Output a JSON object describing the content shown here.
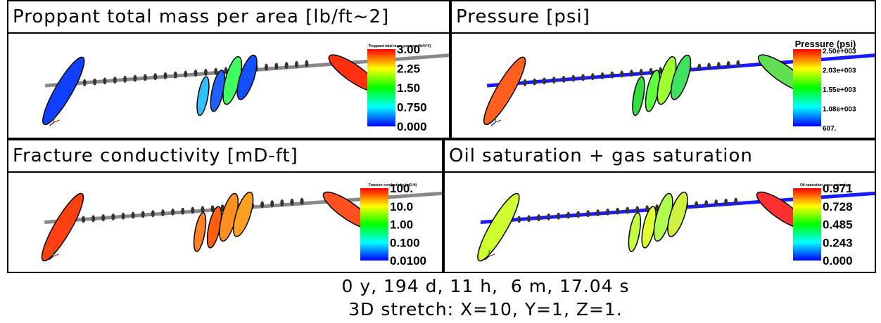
{
  "panels": [
    {
      "title": "Proppant total mass per area [lb/ft~2]",
      "legend_title": "Proppant total mass per area (lb/ft^2)",
      "legend_labels": [
        "3.00",
        "2.25",
        "1.50",
        "0.750",
        "0.000"
      ]
    },
    {
      "title": "Pressure [psi]",
      "legend_title": "Pressure (psi)",
      "legend_labels": [
        "2.50e+003",
        "2.03e+003",
        "1.55e+003",
        "1.08e+003",
        "607."
      ]
    },
    {
      "title": "Fracture conductivity [mD-ft]",
      "legend_title": "Fracture conductivity (mD-ft)",
      "legend_labels": [
        "100.",
        "10.0",
        "1.00",
        "0.100",
        "0.0100"
      ]
    },
    {
      "title": "Oil saturation + gas saturation",
      "legend_title": "Oil saturation + gas saturation",
      "legend_labels": [
        "0.971",
        "0.728",
        "0.485",
        "0.243",
        "0.000"
      ]
    }
  ],
  "footer": {
    "time": "0 y, 194 d, 11 h,  6 m, 17.04 s",
    "stretch": "3D stretch: X=10, Y=1, Z=1."
  }
}
